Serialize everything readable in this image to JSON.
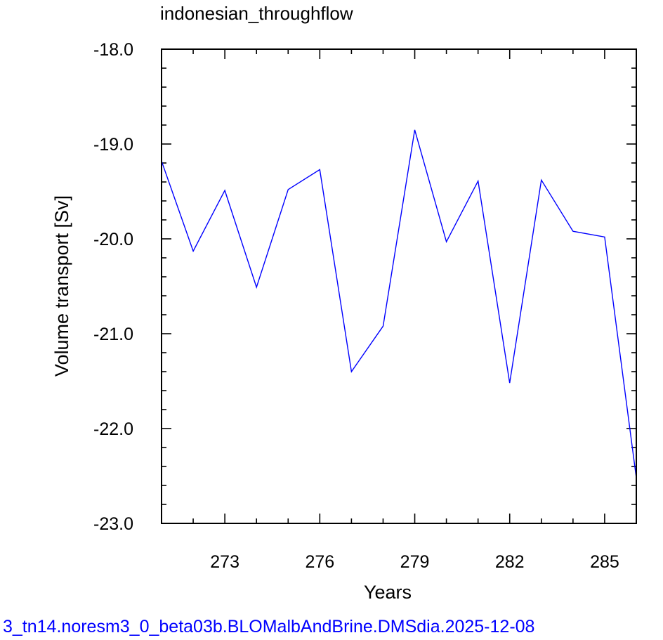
{
  "chart_data": {
    "type": "line",
    "title": "indonesian_throughflow",
    "xlabel": "Years",
    "ylabel": "Volume transport [Sv]",
    "xlim": [
      271,
      286
    ],
    "ylim": [
      -23.0,
      -18.0
    ],
    "x_ticks": [
      273,
      276,
      279,
      282,
      285
    ],
    "y_ticks": [
      -18.0,
      -19.0,
      -20.0,
      -21.0,
      -22.0,
      -23.0
    ],
    "x_tick_labels": [
      "273",
      "276",
      "279",
      "282",
      "285"
    ],
    "y_tick_labels": [
      "-18.0",
      "-19.0",
      "-20.0",
      "-21.0",
      "-22.0",
      "-23.0"
    ],
    "series": [
      {
        "color": "#0000ff",
        "x": [
          271,
          272,
          273,
          274,
          275,
          276,
          277,
          278,
          279,
          280,
          281,
          282,
          283,
          284,
          285,
          286
        ],
        "y": [
          -19.18,
          -20.13,
          -19.49,
          -20.51,
          -19.48,
          -19.27,
          -21.4,
          -20.92,
          -18.85,
          -20.03,
          -19.39,
          -21.52,
          -19.38,
          -19.92,
          -19.98,
          -22.52
        ]
      }
    ],
    "grid": false,
    "legend": "none"
  },
  "footer": {
    "text": "3_tn14.noresm3_0_beta03b.BLOMalbAndBrine.DMSdia.2025-12-08",
    "color": "#0000ff"
  }
}
